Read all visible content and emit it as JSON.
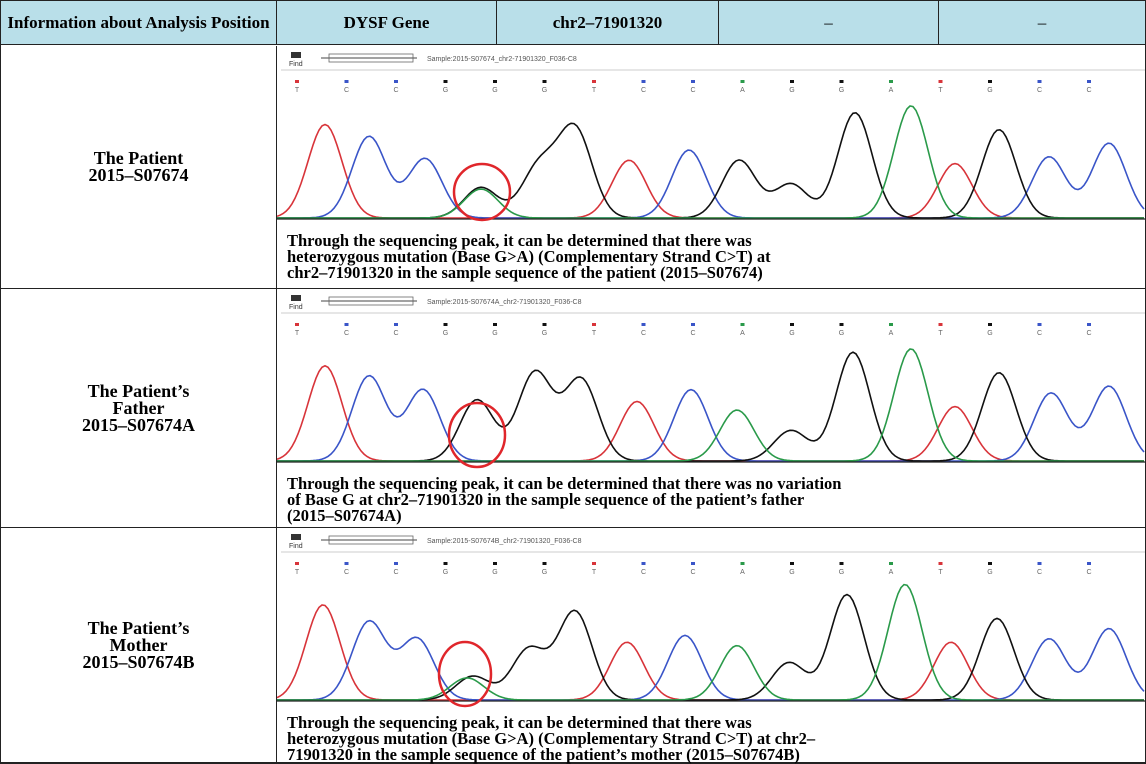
{
  "header": {
    "cells": [
      "Information about Analysis Position",
      "DYSF Gene",
      "chr2–71901320",
      "–",
      "–"
    ]
  },
  "rows": [
    {
      "label": [
        "The Patient",
        "2015–S07674"
      ],
      "find": "Find",
      "sample": "Sample:2015-S07674_chr2-71901320_F036-C8",
      "bases": [
        "T",
        "C",
        "C",
        "G",
        "G",
        "G",
        "T",
        "C",
        "C",
        "A",
        "G",
        "G",
        "A",
        "T",
        "G",
        "C",
        "C"
      ],
      "description": [
        "Through the sequencing peak, it can be determined that there was",
        "heterozygous mutation (Base G>A) (Complementary Strand C>T) at",
        "chr2–71901320 in the sample sequence of the patient (2015–S07674)"
      ]
    },
    {
      "label": [
        "The Patient’s",
        "Father",
        "2015–S07674A"
      ],
      "find": "Find",
      "sample": "Sample:2015-S07674A_chr2-71901320_F036-C8",
      "bases": [
        "T",
        "C",
        "C",
        "G",
        "G",
        "G",
        "T",
        "C",
        "C",
        "A",
        "G",
        "G",
        "A",
        "T",
        "G",
        "C",
        "C"
      ],
      "description": [
        "Through the sequencing peak, it can be determined that there was no variation",
        "of Base G at chr2–71901320 in the sample sequence of the patient’s father",
        "(2015–S07674A)"
      ]
    },
    {
      "label": [
        "The Patient’s",
        "Mother",
        "2015–S07674B"
      ],
      "find": "Find",
      "sample": "Sample:2015-S07674B_chr2-71901320_F036-C8",
      "bases": [
        "T",
        "C",
        "C",
        "G",
        "G",
        "G",
        "T",
        "C",
        "C",
        "A",
        "G",
        "G",
        "A",
        "T",
        "G",
        "C",
        "C"
      ],
      "description": [
        "Through the sequencing peak, it can be determined that there was",
        "heterozygous mutation (Base G>A) (Complementary Strand C>T) at chr2–",
        "71901320 in the sample sequence of the patient’s mother (2015–S07674B)"
      ]
    }
  ]
}
